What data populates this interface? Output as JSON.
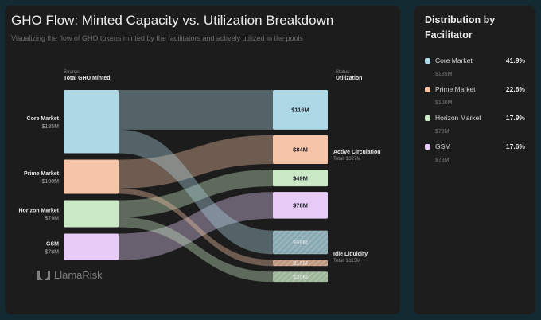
{
  "main": {
    "title": "GHO Flow: Minted Capacity vs. Utilization Breakdown",
    "subtitle": "Visualizing the flow of GHO tokens minted by the facilitators and actively utilized in the pools",
    "source_caption": "Source:",
    "source_label": "Total GHO Minted",
    "status_caption": "Status:",
    "status_label": "Utilization",
    "logo_text": "LlamaRisk"
  },
  "side": {
    "title": "Distribution by Facilitator",
    "items": [
      {
        "name": "Core Market",
        "pct": "41.9%",
        "value": "$185M",
        "color": "#add8e6"
      },
      {
        "name": "Prime Market",
        "pct": "22.6%",
        "value": "$100M",
        "color": "#f6c4a6"
      },
      {
        "name": "Horizon Market",
        "pct": "17.9%",
        "value": "$79M",
        "color": "#cbe9c6"
      },
      {
        "name": "GSM",
        "pct": "17.6%",
        "value": "$78M",
        "color": "#e6ccf6"
      }
    ]
  },
  "chart_data": {
    "type": "sankey",
    "title": "GHO Flow: Minted Capacity vs. Utilization Breakdown",
    "subtitle": "Visualizing the flow of GHO tokens minted by the facilitators and actively utilized in the pools",
    "units": "$M",
    "sources": [
      {
        "name": "Core Market",
        "value": 185,
        "label": "$185M",
        "color": "#add8e6"
      },
      {
        "name": "Prime Market",
        "value": 100,
        "label": "$100M",
        "color": "#f6c4a6"
      },
      {
        "name": "Horizon Market",
        "value": 79,
        "label": "$79M",
        "color": "#cbe9c6"
      },
      {
        "name": "GSM",
        "value": 78,
        "label": "$78M",
        "color": "#e6ccf6"
      }
    ],
    "targets": [
      {
        "source": "Core Market",
        "status": "Active Circulation",
        "value": 116,
        "label": "$116M"
      },
      {
        "source": "Prime Market",
        "status": "Active Circulation",
        "value": 84,
        "label": "$84M"
      },
      {
        "source": "Horizon Market",
        "status": "Active Circulation",
        "value": 49,
        "label": "$49M"
      },
      {
        "source": "GSM",
        "status": "Active Circulation",
        "value": 78,
        "label": "$78M"
      },
      {
        "source": "Core Market",
        "status": "Idle Liquidity",
        "value": 69,
        "label": "$69M"
      },
      {
        "source": "Prime Market",
        "status": "Idle Liquidity",
        "value": 16,
        "label": "$16M"
      },
      {
        "source": "Horizon Market",
        "status": "Idle Liquidity",
        "value": 30,
        "label": "$30M"
      }
    ],
    "groups": [
      {
        "name": "Active Circulation",
        "total": "Total: $327M"
      },
      {
        "name": "Idle Liquidity",
        "total": "Total: $115M"
      }
    ]
  }
}
